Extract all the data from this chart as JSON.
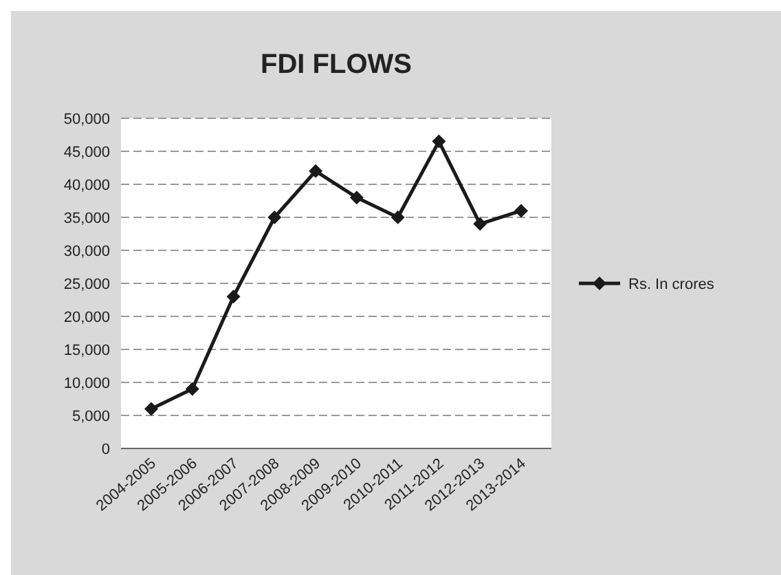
{
  "chart_data": {
    "type": "line",
    "title": "FDI FLOWS",
    "categories": [
      "2004-2005",
      "2005-2006",
      "2006-2007",
      "2007-2008",
      "2008-2009",
      "2009-2010",
      "2010-2011",
      "2011-2012",
      "2012-2013",
      "2013-2014"
    ],
    "series": [
      {
        "name": "Rs. In crores",
        "color": "#1a1a1a",
        "values": [
          6000,
          9000,
          23000,
          35000,
          42000,
          38000,
          35000,
          46500,
          34000,
          36000
        ]
      }
    ],
    "ylim": [
      0,
      50000
    ],
    "yticks": [
      {
        "value": 0,
        "label": "0"
      },
      {
        "value": 5000,
        "label": "5,000"
      },
      {
        "value": 10000,
        "label": "10,000"
      },
      {
        "value": 15000,
        "label": "15,000"
      },
      {
        "value": 20000,
        "label": "20,000"
      },
      {
        "value": 25000,
        "label": "25,000"
      },
      {
        "value": 30000,
        "label": "30,000"
      },
      {
        "value": 35000,
        "label": "35,000"
      },
      {
        "value": 40000,
        "label": "40,000"
      },
      {
        "value": 45000,
        "label": "45,000"
      },
      {
        "value": 50000,
        "label": "50,000"
      }
    ],
    "grid": "y",
    "legend": "right",
    "marker": "diamond",
    "line_style": "solid"
  }
}
